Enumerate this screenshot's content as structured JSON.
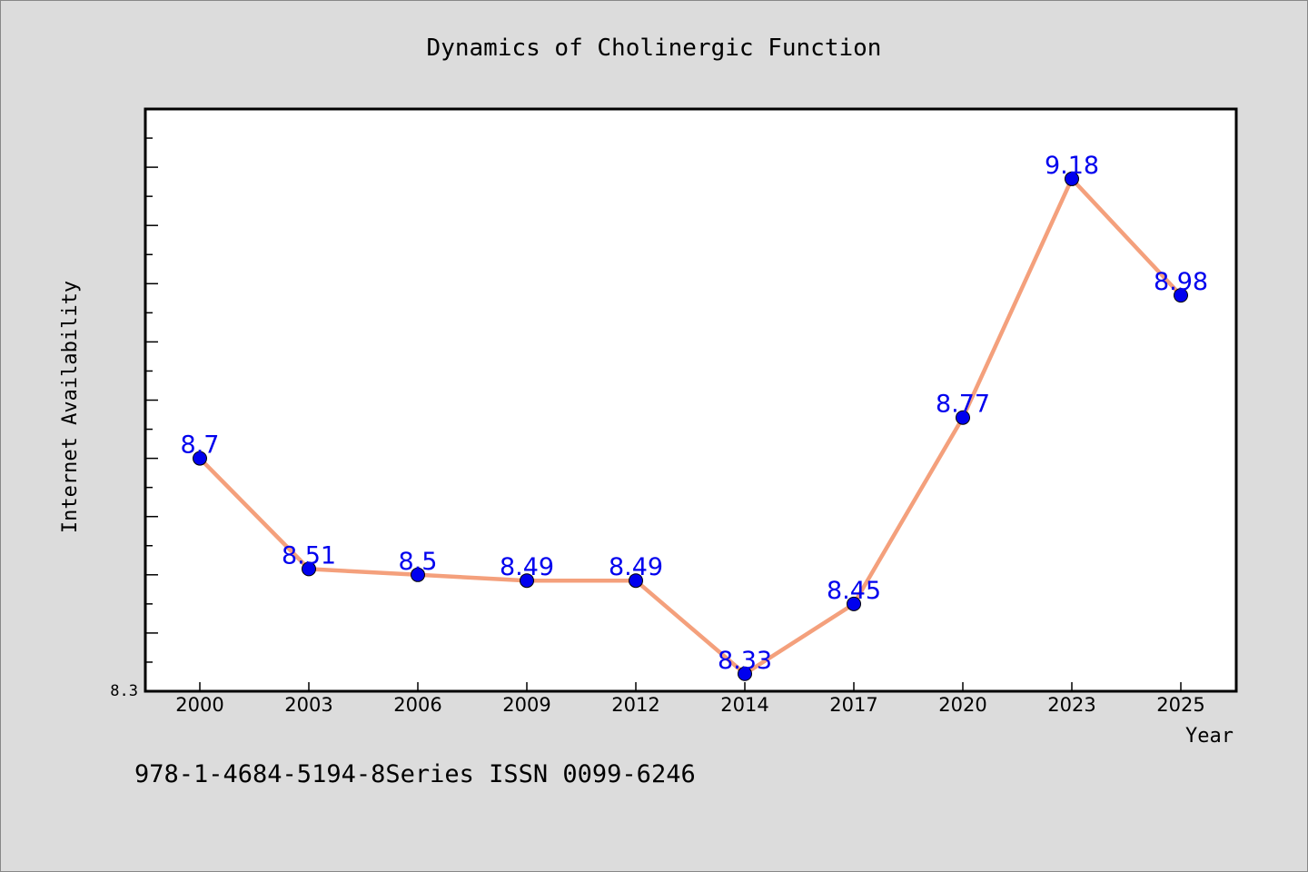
{
  "chart_data": {
    "type": "line",
    "title": "Dynamics of Cholinergic Function",
    "xlabel": "Year",
    "ylabel": "Internet Availability",
    "categories": [
      "2000",
      "2003",
      "2006",
      "2009",
      "2012",
      "2014",
      "2017",
      "2020",
      "2023",
      "2025"
    ],
    "series": [
      {
        "values": [
          8.7,
          8.51,
          8.5,
          8.49,
          8.49,
          8.33,
          8.45,
          8.77,
          9.18,
          8.98
        ],
        "data_labels": [
          "8.7",
          "8.51",
          "8.5",
          "8.49",
          "8.49",
          "8.33",
          "8.45",
          "8.77",
          "9.18",
          "8.98"
        ]
      }
    ],
    "ylim": [
      8.3,
      9.3
    ],
    "yticks_labeled": [
      "8.3"
    ],
    "grid": false,
    "colors": {
      "line": "#f4a07c",
      "marker": "#0000ee",
      "label": "#0000ee",
      "plot_bg": "#ffffff",
      "page_bg": "#dcdcdc"
    }
  },
  "footer_text": "978-1-4684-5194-8Series ISSN 0099-6246"
}
